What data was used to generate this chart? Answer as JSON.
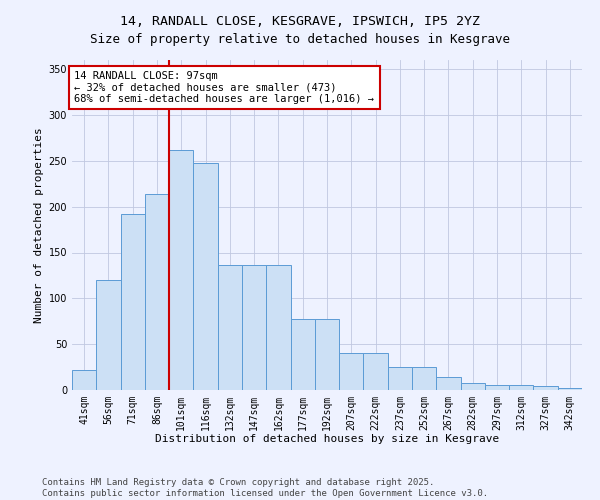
{
  "title": "14, RANDALL CLOSE, KESGRAVE, IPSWICH, IP5 2YZ",
  "subtitle": "Size of property relative to detached houses in Kesgrave",
  "xlabel": "Distribution of detached houses by size in Kesgrave",
  "ylabel": "Number of detached properties",
  "categories": [
    "41sqm",
    "56sqm",
    "71sqm",
    "86sqm",
    "101sqm",
    "116sqm",
    "132sqm",
    "147sqm",
    "162sqm",
    "177sqm",
    "192sqm",
    "207sqm",
    "222sqm",
    "237sqm",
    "252sqm",
    "267sqm",
    "282sqm",
    "297sqm",
    "312sqm",
    "327sqm",
    "342sqm"
  ],
  "values": [
    22,
    120,
    192,
    214,
    262,
    248,
    136,
    136,
    136,
    78,
    78,
    40,
    40,
    25,
    25,
    14,
    8,
    6,
    5,
    4,
    2
  ],
  "bar_color": "#cce0f5",
  "bar_edge_color": "#5b9bd5",
  "vline_x": 3.5,
  "vline_color": "#cc0000",
  "annotation_line1": "14 RANDALL CLOSE: 97sqm",
  "annotation_line2": "← 32% of detached houses are smaller (473)",
  "annotation_line3": "68% of semi-detached houses are larger (1,016) →",
  "annotation_box_facecolor": "#ffffff",
  "annotation_box_edgecolor": "#cc0000",
  "ylim": [
    0,
    360
  ],
  "yticks": [
    0,
    50,
    100,
    150,
    200,
    250,
    300,
    350
  ],
  "grid_color": "#c0c8e0",
  "background_color": "#eef2ff",
  "footer_line1": "Contains HM Land Registry data © Crown copyright and database right 2025.",
  "footer_line2": "Contains public sector information licensed under the Open Government Licence v3.0.",
  "title_fontsize": 9.5,
  "xlabel_fontsize": 8,
  "ylabel_fontsize": 8,
  "tick_fontsize": 7,
  "annotation_fontsize": 7.5,
  "footer_fontsize": 6.5
}
